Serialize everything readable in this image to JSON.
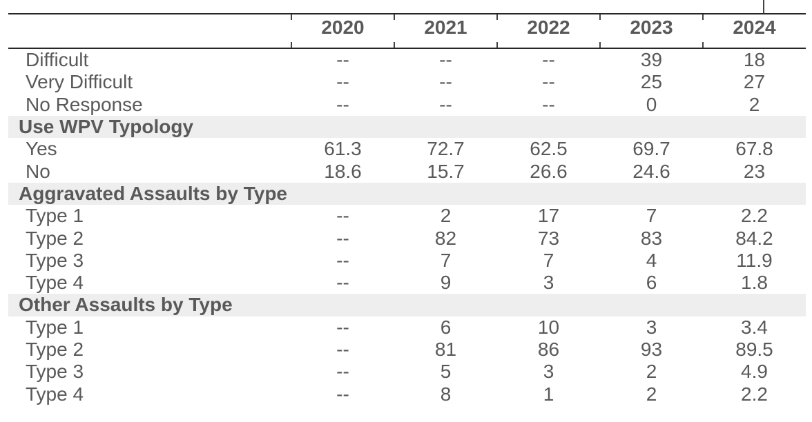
{
  "chart_data": {
    "type": "table",
    "title": "",
    "columns": [
      "",
      "2020",
      "2021",
      "2022",
      "2023",
      "2024"
    ],
    "rows": [
      {
        "type": "data",
        "label": "Difficult",
        "values": [
          "--",
          "--",
          "--",
          "39",
          "18"
        ]
      },
      {
        "type": "data",
        "label": "Very Difficult",
        "values": [
          "--",
          "--",
          "--",
          "25",
          "27"
        ]
      },
      {
        "type": "data",
        "label": "No Response",
        "values": [
          "--",
          "--",
          "--",
          "0",
          "2"
        ]
      },
      {
        "type": "section",
        "label": "Use WPV Typology"
      },
      {
        "type": "data",
        "label": "Yes",
        "values": [
          "61.3",
          "72.7",
          "62.5",
          "69.7",
          "67.8"
        ]
      },
      {
        "type": "data",
        "label": "No",
        "values": [
          "18.6",
          "15.7",
          "26.6",
          "24.6",
          "23"
        ]
      },
      {
        "type": "section",
        "label": "Aggravated Assaults by Type"
      },
      {
        "type": "data",
        "label": "Type 1",
        "values": [
          "--",
          "2",
          "17",
          "7",
          "2.2"
        ]
      },
      {
        "type": "data",
        "label": "Type 2",
        "values": [
          "--",
          "82",
          "73",
          "83",
          "84.2"
        ]
      },
      {
        "type": "data",
        "label": "Type 3",
        "values": [
          "--",
          "7",
          "7",
          "4",
          "11.9"
        ]
      },
      {
        "type": "data",
        "label": "Type 4",
        "values": [
          "--",
          "9",
          "3",
          "6",
          "1.8"
        ]
      },
      {
        "type": "section",
        "label": "Other Assaults by Type"
      },
      {
        "type": "data",
        "label": "Type 1",
        "values": [
          "--",
          "6",
          "10",
          "3",
          "3.4"
        ]
      },
      {
        "type": "data",
        "label": "Type 2",
        "values": [
          "--",
          "81",
          "86",
          "93",
          "89.5"
        ]
      },
      {
        "type": "data",
        "label": "Type 3",
        "values": [
          "--",
          "5",
          "3",
          "2",
          "4.9"
        ]
      },
      {
        "type": "data",
        "label": "Type 4",
        "values": [
          "--",
          "8",
          "1",
          "2",
          "2.2"
        ]
      }
    ],
    "missing_value_marker": "--",
    "layout": {
      "grid": "off",
      "section_band_color": "#eeeeee"
    }
  },
  "colors": {
    "text": "#595959",
    "rule_line": "#262626",
    "section_band": "#eeeeee",
    "background": "#ffffff"
  }
}
